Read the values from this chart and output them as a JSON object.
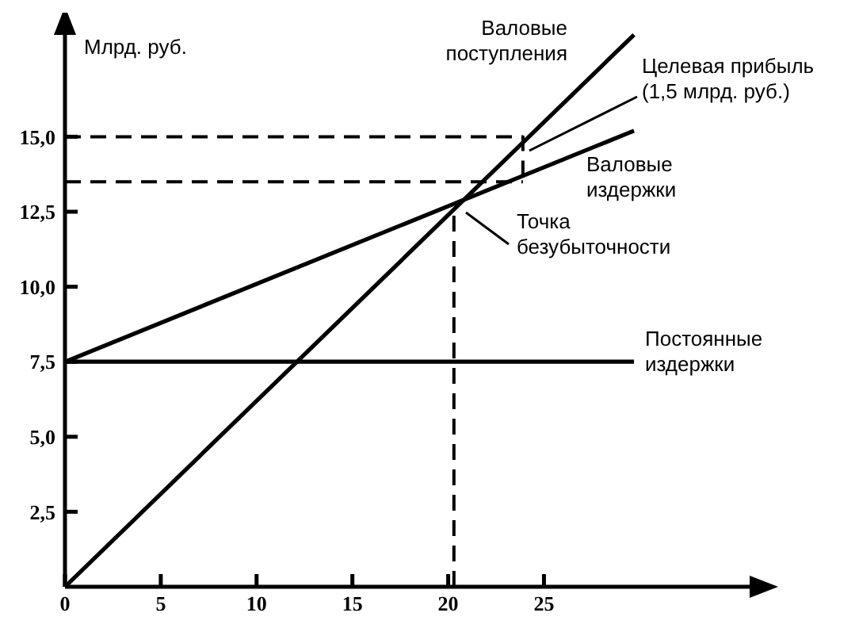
{
  "chart_data": {
    "type": "line",
    "ylabel": "Млрд. руб.",
    "xlim": [
      0,
      35.9
    ],
    "ylim": [
      0,
      18.5
    ],
    "xticks": [
      0,
      5,
      10,
      15,
      20,
      25
    ],
    "yticks": [
      {
        "value": 2.5,
        "label": "2,5"
      },
      {
        "value": 5,
        "label": "5,0"
      },
      {
        "value": 7.5,
        "label": "7,5"
      },
      {
        "value": 10,
        "label": "10,0"
      },
      {
        "value": 12.5,
        "label": "12,5"
      },
      {
        "value": 15,
        "label": "15,0"
      }
    ],
    "series": [
      {
        "color": "#000000",
        "x": [
          0,
          29.7
        ],
        "values": [
          0,
          18.4
        ],
        "line_style": "solid"
      },
      {
        "color": "#000000",
        "x": [
          0,
          29.7
        ],
        "values": [
          7.5,
          15.2
        ],
        "line_style": "solid"
      },
      {
        "color": "#000000",
        "x": [
          0,
          29.7
        ],
        "values": [
          7.5,
          7.5
        ],
        "line_style": "solid"
      },
      {
        "color": "#000000",
        "x": [
          0,
          23.9,
          23.9
        ],
        "values": [
          15,
          15,
          13.5
        ],
        "line_style": "dashed"
      },
      {
        "color": "#000000",
        "x": [
          0,
          23.9
        ],
        "values": [
          13.5,
          13.5
        ],
        "line_style": "dashed"
      },
      {
        "color": "#000000",
        "x": [
          20.3,
          20.3
        ],
        "values": [
          0,
          12.6
        ],
        "line_style": "dashed"
      }
    ],
    "annotations": [
      "Валовые\nпоступления",
      "Целевая прибыль\n(1,5 млрд. руб.)",
      "Валовые\nиздержки",
      "Точка\nбезубыточности",
      "Постоянные\nиздержки"
    ],
    "marker": "none",
    "grid": false
  }
}
